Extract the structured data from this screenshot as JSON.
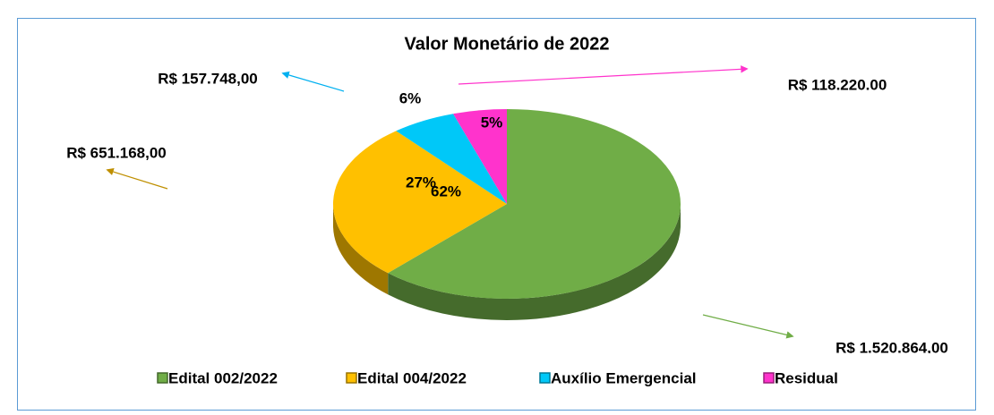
{
  "chart_data": {
    "type": "pie",
    "title": "Valor Monetário de 2022",
    "categories": [
      "Edital 002/2022",
      "Edital 004/2022",
      "Auxílio Emergencial",
      "Residual"
    ],
    "values": [
      62,
      27,
      6,
      5
    ],
    "value_labels": [
      "62%",
      "27%",
      "6%",
      "5%"
    ],
    "colors": [
      "#70ad47",
      "#ffc000",
      "#00c8f8",
      "#ff33cc"
    ],
    "annotations": [
      "R$ 1.520.864,00",
      "R$ 651.168,00",
      "R$ 157.748,00",
      "R$ 118.220.00"
    ],
    "legend": "bottom"
  }
}
